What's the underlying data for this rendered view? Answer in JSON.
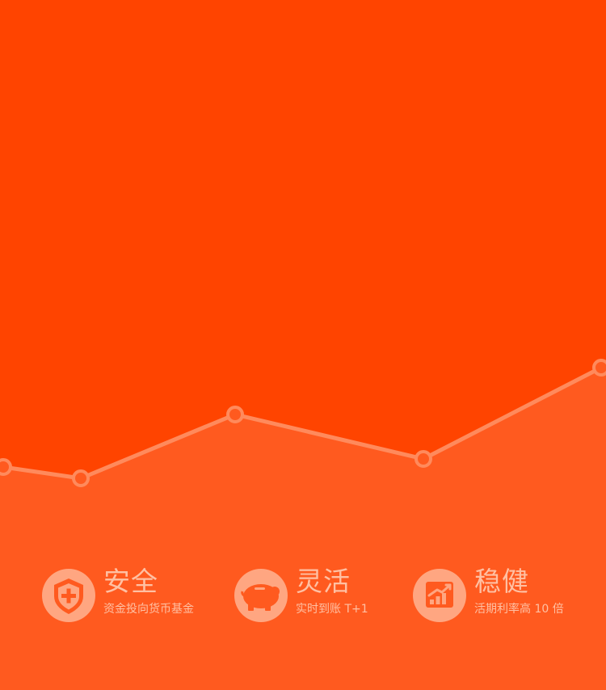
{
  "colors": {
    "background": "#ff4400",
    "area_fill": "#ff5a1f",
    "trend_line": "#ff8a5c",
    "badge_bg": "#ffa681",
    "badge_icon": "#ff5a1f",
    "feature_text": "#ffc0a3"
  },
  "trend": {
    "points": [
      [
        4,
        578
      ],
      [
        100,
        592
      ],
      [
        291,
        513
      ],
      [
        524,
        568
      ],
      [
        744,
        455
      ]
    ]
  },
  "features": [
    {
      "icon": "shield-plus-icon",
      "title": "安全",
      "desc": "资金投向货币基金"
    },
    {
      "icon": "piggy-bank-icon",
      "title": "灵活",
      "desc": "实时到账  T+1"
    },
    {
      "icon": "growth-chart-icon",
      "title": "稳健",
      "desc": "活期利率高 10 倍"
    }
  ]
}
